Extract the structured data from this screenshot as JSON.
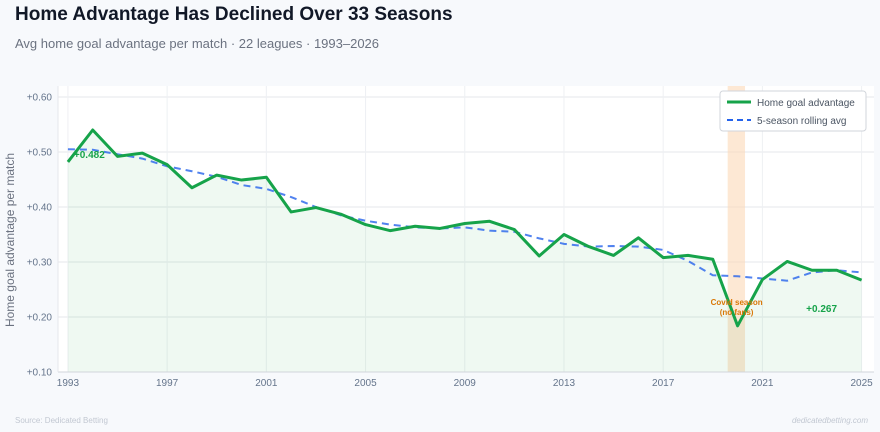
{
  "header": {
    "title": "Home Advantage Has Declined Over 33 Seasons",
    "subtitle": "Avg home goal advantage per match · 22 leagues · 1993–2026"
  },
  "footer": {
    "source": "Source: Dedicated Betting",
    "brand": "dedicatedbetting.com"
  },
  "colors": {
    "actual": "#16a34a",
    "rolling": "#2563eb",
    "covid_band": "#fbd9b8"
  },
  "chart_data": {
    "type": "line",
    "title": "Home Advantage Has Declined Over 33 Seasons",
    "xlabel": "",
    "ylabel": "Home goal advantage per match",
    "ylim": [
      0.1,
      0.62
    ],
    "xlim": [
      1992.6,
      2025.5
    ],
    "y_ticks": [
      "+0.10",
      "+0.20",
      "+0.30",
      "+0.40",
      "+0.50",
      "+0.60"
    ],
    "x_ticks": [
      "1993",
      "1997",
      "2001",
      "2005",
      "2009",
      "2013",
      "2017",
      "2021",
      "2025"
    ],
    "grid": true,
    "legend_position": "top-right",
    "x": [
      1993,
      1994,
      1995,
      1996,
      1997,
      1998,
      1999,
      2000,
      2001,
      2002,
      2003,
      2004,
      2005,
      2006,
      2007,
      2008,
      2009,
      2010,
      2011,
      2012,
      2013,
      2014,
      2015,
      2016,
      2017,
      2018,
      2019,
      2020,
      2021,
      2022,
      2023,
      2024,
      2025
    ],
    "series": [
      {
        "name": "Home goal advantage",
        "values": [
          0.482,
          0.54,
          0.492,
          0.498,
          0.477,
          0.435,
          0.458,
          0.449,
          0.454,
          0.391,
          0.399,
          0.387,
          0.368,
          0.357,
          0.365,
          0.361,
          0.37,
          0.374,
          0.359,
          0.311,
          0.35,
          0.328,
          0.312,
          0.344,
          0.308,
          0.312,
          0.305,
          0.184,
          0.268,
          0.301,
          0.285,
          0.285,
          0.267
        ]
      },
      {
        "name": "5-season rolling avg",
        "values": [
          0.505,
          0.504,
          0.496,
          0.488,
          0.474,
          0.465,
          0.455,
          0.44,
          0.433,
          0.418,
          0.4,
          0.385,
          0.375,
          0.368,
          0.363,
          0.361,
          0.363,
          0.357,
          0.355,
          0.343,
          0.333,
          0.328,
          0.329,
          0.328,
          0.322,
          0.302,
          0.276,
          0.274,
          0.27,
          0.266,
          0.281,
          0.285,
          0.281
        ]
      }
    ],
    "covid_span": [
      2019.6,
      2020.3
    ],
    "annotations": [
      {
        "text": "+0.482",
        "x": 1993,
        "y": 0.482,
        "series": "Home goal advantage"
      },
      {
        "text": "+0.267",
        "x": 2025,
        "y": 0.267,
        "series": "Home goal advantage"
      },
      {
        "lines": [
          "Covid season",
          "(no fans)"
        ],
        "x": 2020,
        "y": 0.184
      }
    ]
  }
}
